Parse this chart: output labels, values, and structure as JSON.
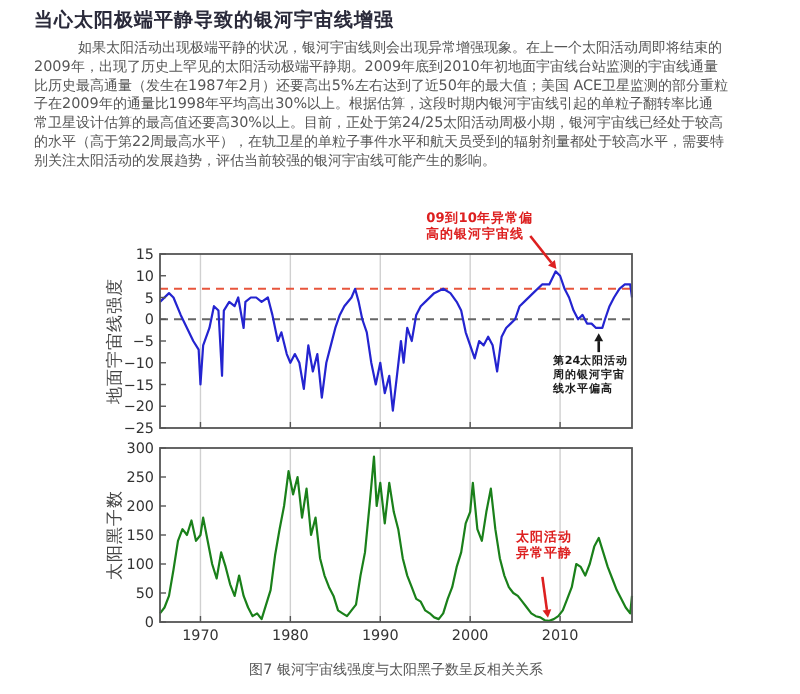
{
  "chart_data": [
    {
      "type": "line",
      "title": "当心太阳极端平静导致的银河宇宙线增强",
      "subtitle": "如果太阳活动出现极端平静的状况，银河宇宙线则会出现异常增强现象。在上一个太阳活动周即将结束的2009年，出现了历史上罕见的太阳活动极端平静期。2009年底到2010年初地面宇宙线台站监测的宇宙线通量比历史最高通量（发生在1987年2月）还要高出5%左右达到了近50年的最大值；美国 ACE卫星监测的部分重粒子在2009年的通量比1998年平均高出30%以上。根据估算，这段时期内银河宇宙线引起的单粒子翻转率比通常卫星设计估算的最高值还要高30%以上。目前，正处于第24/25太阳活动周极小期，银河宇宙线已经处于较高的水平（高于第22周最高水平），在轨卫星的单粒子事件水平和航天员受到的辐射剂量都处于较高水平，需要特别关注太阳活动的发展趋势，评估当前较强的银河宇宙线可能产生的影响。",
      "ylabel": "地面宇宙线强度",
      "x": [
        1965.5,
        1966.5,
        1967,
        1967.8,
        1968.5,
        1969.2,
        1969.8,
        1970,
        1970.3,
        1971,
        1971.5,
        1972,
        1972.4,
        1972.6,
        1973.2,
        1973.8,
        1974.2,
        1974.8,
        1975,
        1975.6,
        1976.2,
        1976.8,
        1977.5,
        1978,
        1978.6,
        1979,
        1979.6,
        1980,
        1980.5,
        1981,
        1981.5,
        1982,
        1982.5,
        1983,
        1983.5,
        1984,
        1984.5,
        1985,
        1985.5,
        1986,
        1986.8,
        1987.2,
        1987.6,
        1988,
        1988.5,
        1989,
        1989.5,
        1990,
        1990.5,
        1991,
        1991.4,
        1991.8,
        1992.3,
        1992.6,
        1993,
        1993.5,
        1994,
        1994.5,
        1995,
        1996,
        1997,
        1997.8,
        1998.5,
        1999,
        1999.5,
        2000,
        2000.5,
        2001,
        2001.5,
        2002,
        2002.5,
        2003,
        2003.5,
        2004,
        2004.5,
        2005,
        2005.5,
        2006,
        2007,
        2008,
        2008.8,
        2009.5,
        2010,
        2010.5,
        2011,
        2011.5,
        2012,
        2012.5,
        2013,
        2013.5,
        2014,
        2014.7,
        2015,
        2015.5,
        2016,
        2016.6,
        2017.2,
        2017.8,
        2018
      ],
      "series": [
        {
          "color": "#2424d0",
          "values": [
            4,
            6,
            5,
            1,
            -2,
            -5,
            -7,
            -15,
            -6,
            -2,
            3,
            2,
            -13,
            2,
            4,
            3,
            5,
            -2,
            4,
            5,
            5,
            4,
            5,
            1,
            -5,
            -3,
            -8,
            -10,
            -8,
            -10,
            -16,
            -6,
            -12,
            -8,
            -18,
            -10,
            -6,
            -2,
            1,
            3,
            5,
            7,
            4,
            0,
            -3,
            -10,
            -15,
            -10,
            -17,
            -13,
            -21,
            -14,
            -5,
            -10,
            -2,
            -5,
            1,
            3,
            4,
            6,
            7,
            6,
            4,
            2,
            -3,
            -6,
            -9,
            -5,
            -6,
            -4,
            -6,
            -12,
            -4,
            -2,
            -1,
            0,
            3,
            4,
            6,
            8,
            8,
            11,
            10,
            7,
            5,
            2,
            0,
            1,
            -1,
            -1,
            -2,
            -2,
            0,
            3,
            5,
            7,
            8,
            8,
            5
          ]
        }
      ],
      "xlim": [
        1965.5,
        2018
      ],
      "xticks": [
        1970,
        1980,
        1990,
        2000,
        2010
      ],
      "ylim": [
        -25,
        15
      ],
      "yticks": [
        -25,
        -20,
        -15,
        -10,
        -5,
        0,
        5,
        10,
        15
      ],
      "tick_labels": "y",
      "grid": "x",
      "ref_lines": [
        {
          "axis": "y",
          "value": 7,
          "color": "#e8553c",
          "line_style": "dashed"
        },
        {
          "axis": "y",
          "value": 0,
          "color": "#666666",
          "line_style": "dashed"
        }
      ],
      "annotations": [
        {
          "text": "09到10年异常偏高的银河宇宙线",
          "x": 2009.8,
          "y": 11
        },
        {
          "text": "第24太阳活动周的银河宇宙线水平偏高",
          "x": 2014.3,
          "y": -2.5
        }
      ]
    },
    {
      "type": "line",
      "ylabel": "太阳黑子数",
      "x": [
        1965.5,
        1966,
        1966.5,
        1967,
        1967.5,
        1968,
        1968.5,
        1969,
        1969.5,
        1970,
        1970.3,
        1970.8,
        1971.3,
        1971.8,
        1972.3,
        1972.8,
        1973.3,
        1973.8,
        1974.3,
        1974.8,
        1975.3,
        1975.8,
        1976.3,
        1976.8,
        1977.3,
        1977.8,
        1978.3,
        1978.8,
        1979.3,
        1979.8,
        1980.3,
        1980.8,
        1981.3,
        1981.8,
        1982.3,
        1982.8,
        1983.3,
        1983.8,
        1984.3,
        1984.8,
        1985.3,
        1985.8,
        1986.3,
        1986.8,
        1987.3,
        1987.8,
        1988.3,
        1988.8,
        1989.3,
        1989.6,
        1990,
        1990.5,
        1991,
        1991.5,
        1992,
        1992.5,
        1993,
        1993.5,
        1994,
        1994.5,
        1995,
        1995.5,
        1996,
        1996.5,
        1997,
        1997.5,
        1998,
        1998.5,
        1999,
        1999.5,
        2000,
        2000.3,
        2000.8,
        2001.3,
        2001.8,
        2002.3,
        2002.8,
        2003.3,
        2003.8,
        2004.3,
        2004.8,
        2005.3,
        2005.8,
        2006.3,
        2006.8,
        2007.3,
        2007.8,
        2008.3,
        2008.8,
        2009.3,
        2009.8,
        2010.3,
        2010.8,
        2011.3,
        2011.8,
        2012.3,
        2012.8,
        2013.3,
        2013.8,
        2014.3,
        2014.8,
        2015.3,
        2015.8,
        2016.3,
        2016.8,
        2017.3,
        2017.8,
        2018
      ],
      "series": [
        {
          "color": "#1a801a",
          "values": [
            15,
            25,
            45,
            90,
            140,
            160,
            150,
            175,
            140,
            150,
            180,
            140,
            100,
            75,
            120,
            95,
            65,
            45,
            80,
            45,
            25,
            10,
            15,
            5,
            30,
            55,
            115,
            160,
            200,
            260,
            220,
            250,
            180,
            230,
            150,
            180,
            110,
            80,
            60,
            45,
            20,
            15,
            10,
            20,
            30,
            80,
            120,
            200,
            285,
            200,
            240,
            170,
            240,
            190,
            160,
            110,
            80,
            60,
            40,
            35,
            20,
            15,
            8,
            5,
            15,
            40,
            60,
            95,
            120,
            170,
            190,
            240,
            160,
            140,
            190,
            230,
            160,
            110,
            80,
            60,
            50,
            45,
            35,
            25,
            15,
            10,
            8,
            3,
            2,
            5,
            10,
            20,
            40,
            60,
            100,
            95,
            80,
            100,
            130,
            145,
            120,
            95,
            75,
            55,
            40,
            25,
            15,
            45
          ]
        }
      ],
      "xlim": [
        1965.5,
        2018
      ],
      "xticks": [
        1970,
        1980,
        1990,
        2000,
        2010
      ],
      "ylim": [
        0,
        300
      ],
      "yticks": [
        0,
        50,
        100,
        150,
        200,
        250,
        300
      ],
      "grid": "x",
      "annotations": [
        {
          "text": "太阳活动异常平静",
          "x": 2008.7,
          "y": 2
        },
        "图7  银河宇宙线强度与太阳黑子数呈反相关关系"
      ]
    }
  ]
}
